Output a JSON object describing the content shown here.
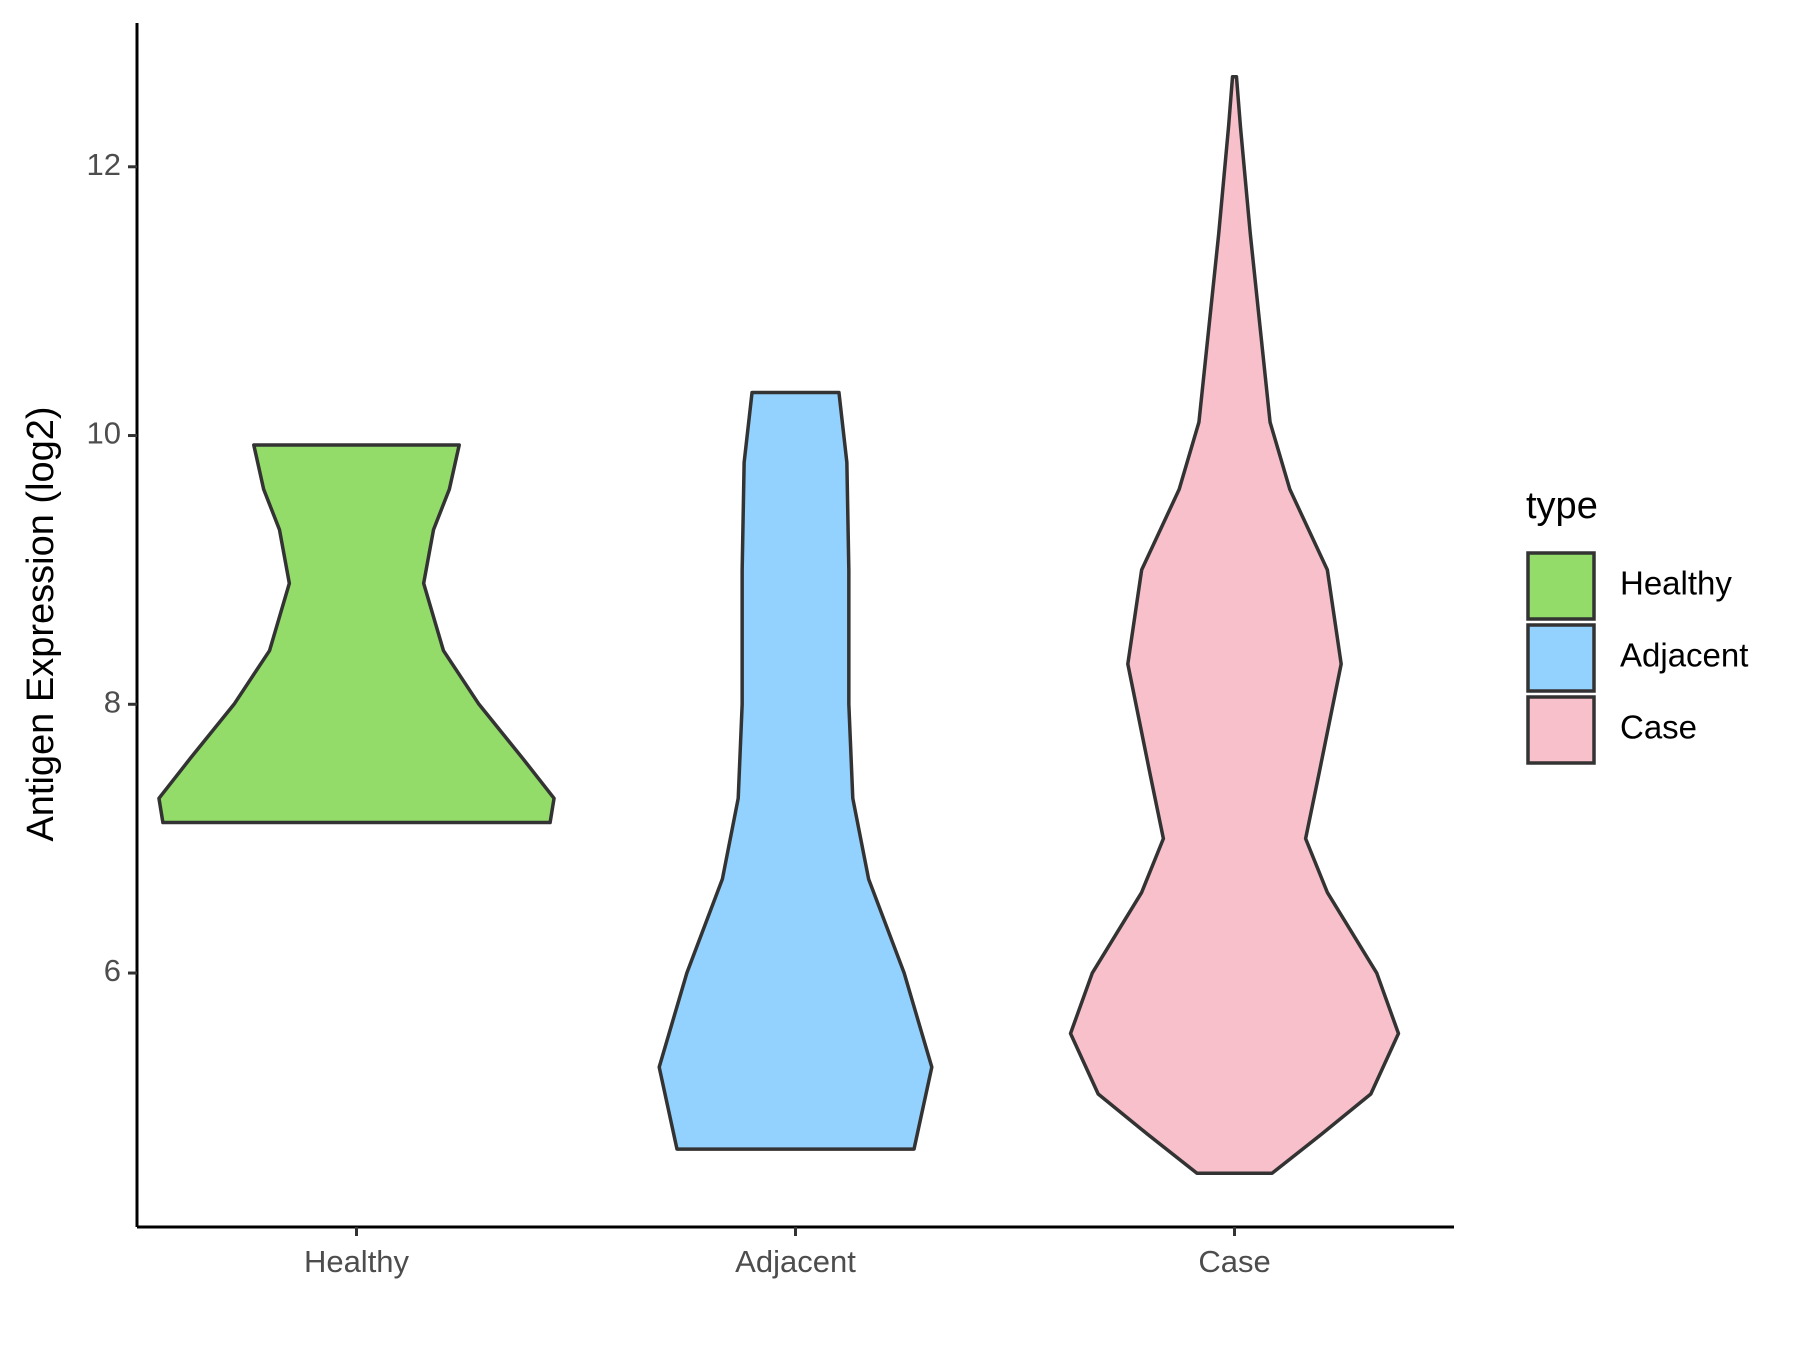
{
  "chart_data": {
    "type": "violin",
    "y_label": "Antigen Expression (log2)",
    "categories": [
      "Healthy",
      "Adjacent",
      "Case"
    ],
    "ylim": [
      4.11,
      13.07
    ],
    "yticks": [
      6,
      8,
      10,
      12
    ],
    "legend_title": "type",
    "legend_position": "right",
    "series": [
      {
        "name": "Healthy",
        "color": "#93dc69",
        "y": [
          7.12,
          7.3,
          7.6,
          8.0,
          8.4,
          8.9,
          9.3,
          9.6,
          9.93
        ],
        "widths": [
          0.98,
          1.0,
          0.84,
          0.62,
          0.44,
          0.34,
          0.39,
          0.47,
          0.52
        ]
      },
      {
        "name": "Adjacent",
        "color": "#93d2fe",
        "y": [
          4.69,
          5.3,
          6.0,
          6.7,
          7.3,
          8.0,
          9.0,
          9.8,
          10.32
        ],
        "widths": [
          0.6,
          0.69,
          0.55,
          0.37,
          0.29,
          0.27,
          0.27,
          0.26,
          0.22
        ]
      },
      {
        "name": "Case",
        "color": "#f7c0cb",
        "y": [
          4.51,
          4.8,
          5.1,
          5.55,
          6.0,
          6.6,
          7.0,
          7.5,
          8.3,
          9.0,
          9.6,
          10.1,
          10.8,
          11.5,
          12.3,
          12.67
        ],
        "widths": [
          0.19,
          0.44,
          0.69,
          0.83,
          0.72,
          0.47,
          0.36,
          0.43,
          0.54,
          0.47,
          0.28,
          0.18,
          0.13,
          0.08,
          0.03,
          0.01
        ]
      }
    ]
  }
}
